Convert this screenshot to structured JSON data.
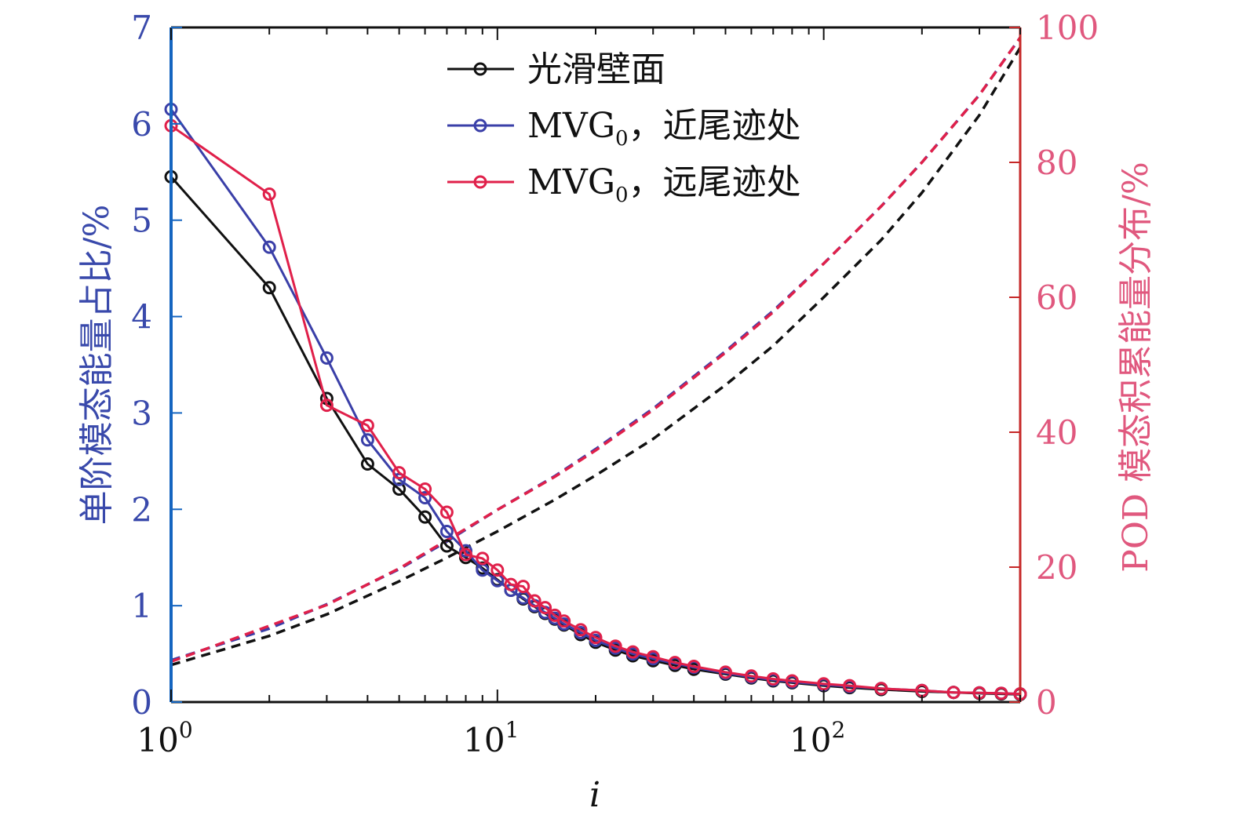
{
  "chart_data": {
    "type": "line",
    "xscale": "log",
    "xlim": [
      1,
      400
    ],
    "xlabel": "i",
    "x_tick_labels": [
      {
        "base": "10",
        "exp": "0",
        "value": 1
      },
      {
        "base": "10",
        "exp": "1",
        "value": 10
      },
      {
        "base": "10",
        "exp": "2",
        "value": 100
      }
    ],
    "ylabel_left": "单阶模态能量占比/%",
    "ylim_left": [
      0,
      7
    ],
    "yticks_left": [
      "0",
      "1",
      "2",
      "3",
      "4",
      "5",
      "6",
      "7"
    ],
    "ylabel_right": "POD 模态积累能量分布/%",
    "ylim_right": [
      0,
      100
    ],
    "yticks_right": [
      "0",
      "20",
      "40",
      "60",
      "80",
      "100"
    ],
    "colors": {
      "left_axis": "#1565C0",
      "left_label": "#3949AB",
      "right_axis": "#C62828",
      "right_label": "#E0587E",
      "smooth": "#111111",
      "near": "#3A3FA8",
      "far": "#E0204A"
    },
    "legend_position": "top-center",
    "series": [
      {
        "name": "光滑壁面",
        "color": "#111111",
        "x": [
          1,
          2,
          3,
          4,
          5,
          6,
          7,
          8,
          9,
          10,
          11,
          12,
          13,
          14,
          15,
          16,
          18,
          20,
          23,
          26,
          30,
          35,
          40,
          50,
          60,
          70,
          80,
          100,
          120,
          150,
          200,
          250,
          300,
          350,
          400
        ],
        "values": [
          5.45,
          4.3,
          3.15,
          2.47,
          2.21,
          1.92,
          1.62,
          1.5,
          1.39,
          1.27,
          1.16,
          1.07,
          0.99,
          0.92,
          0.86,
          0.8,
          0.7,
          0.62,
          0.54,
          0.48,
          0.43,
          0.38,
          0.34,
          0.29,
          0.25,
          0.22,
          0.2,
          0.17,
          0.15,
          0.13,
          0.11,
          0.1,
          0.09,
          0.085,
          0.08
        ]
      },
      {
        "name": "MVG0，近尾迹处",
        "name_base": "MVG",
        "name_sub": "0",
        "name_suffix": "，近尾迹处",
        "color": "#3A3FA8",
        "x": [
          1,
          2,
          3,
          4,
          5,
          6,
          7,
          8,
          9,
          10,
          11,
          12,
          13,
          14,
          15,
          16,
          18,
          20,
          23,
          26,
          30,
          35,
          40,
          50,
          60,
          70,
          80,
          100,
          120,
          150,
          200,
          250,
          300,
          350,
          400
        ],
        "values": [
          6.15,
          4.72,
          3.57,
          2.72,
          2.31,
          2.12,
          1.77,
          1.57,
          1.37,
          1.26,
          1.16,
          1.08,
          1.0,
          0.93,
          0.87,
          0.81,
          0.72,
          0.64,
          0.56,
          0.5,
          0.45,
          0.4,
          0.36,
          0.3,
          0.26,
          0.23,
          0.21,
          0.18,
          0.16,
          0.14,
          0.12,
          0.1,
          0.095,
          0.09,
          0.085
        ]
      },
      {
        "name": "MVG0，远尾迹处",
        "name_base": "MVG",
        "name_sub": "0",
        "name_suffix": "，远尾迹处",
        "color": "#E0204A",
        "x": [
          1,
          2,
          3,
          4,
          5,
          6,
          7,
          8,
          9,
          10,
          11,
          12,
          13,
          14,
          15,
          16,
          18,
          20,
          23,
          26,
          30,
          35,
          40,
          50,
          60,
          70,
          80,
          100,
          120,
          150,
          200,
          250,
          300,
          350,
          400
        ],
        "values": [
          5.98,
          5.27,
          3.08,
          2.87,
          2.38,
          2.21,
          1.97,
          1.53,
          1.49,
          1.37,
          1.22,
          1.2,
          1.05,
          0.98,
          0.9,
          0.84,
          0.75,
          0.67,
          0.58,
          0.52,
          0.47,
          0.41,
          0.37,
          0.31,
          0.27,
          0.24,
          0.22,
          0.19,
          0.17,
          0.14,
          0.12,
          0.1,
          0.095,
          0.09,
          0.085
        ]
      },
      {
        "name": "光滑壁面 cumulative",
        "color": "#111111",
        "axis": "right",
        "style": "dashed",
        "x": [
          1,
          2,
          3,
          5,
          7,
          10,
          15,
          20,
          30,
          50,
          70,
          100,
          150,
          200,
          300,
          400
        ],
        "values": [
          5.5,
          9.8,
          13.0,
          17.9,
          21.4,
          25.3,
          30.0,
          33.6,
          39.0,
          47.0,
          52.8,
          60.0,
          68.5,
          75.5,
          87.0,
          97.0
        ]
      },
      {
        "name": "MVG0，近尾迹处 cumulative",
        "color": "#3A3FA8",
        "axis": "right",
        "style": "dashed",
        "x": [
          1,
          2,
          3,
          5,
          7,
          10,
          15,
          20,
          30,
          50,
          70,
          100,
          150,
          200,
          300,
          400
        ],
        "values": [
          6.2,
          10.9,
          14.5,
          19.7,
          23.8,
          28.5,
          33.5,
          37.5,
          43.5,
          52.0,
          58.0,
          65.0,
          73.5,
          80.0,
          90.0,
          98.5
        ]
      },
      {
        "name": "MVG0，远尾迹处 cumulative",
        "color": "#E0204A",
        "axis": "right",
        "style": "dashed",
        "x": [
          1,
          2,
          3,
          5,
          7,
          10,
          15,
          20,
          30,
          50,
          70,
          100,
          150,
          200,
          300,
          400
        ],
        "values": [
          6.0,
          11.3,
          14.4,
          19.8,
          24.0,
          28.5,
          33.4,
          37.3,
          43.3,
          51.8,
          57.8,
          65.0,
          73.5,
          80.0,
          90.0,
          98.5
        ]
      }
    ]
  }
}
